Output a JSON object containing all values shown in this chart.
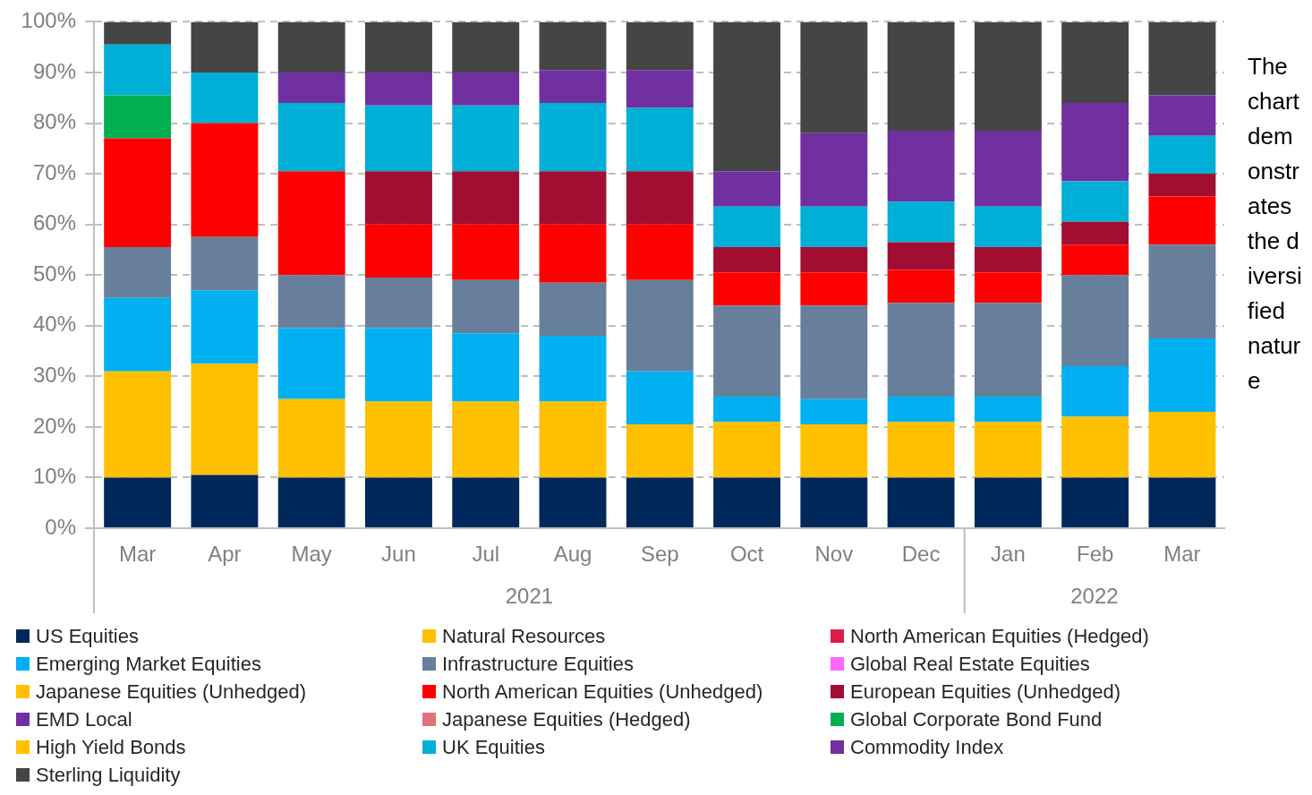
{
  "chart_data": {
    "type": "bar",
    "stacked": true,
    "x": [
      "2021-03",
      "2021-04",
      "2021-05",
      "2021-06",
      "2021-07",
      "2021-08",
      "2021-09",
      "2021-10",
      "2021-11",
      "2021-12",
      "2022-01",
      "2022-02",
      "2022-03"
    ],
    "xlim": [
      "2021-02-15",
      "2022-03-16"
    ],
    "xticks": [
      {
        "value": "2021-03",
        "label": "Mar"
      },
      {
        "value": "2021-04",
        "label": "Apr"
      },
      {
        "value": "2021-05",
        "label": "May"
      },
      {
        "value": "2021-06",
        "label": "Jun"
      },
      {
        "value": "2021-07",
        "label": "Jul"
      },
      {
        "value": "2021-08",
        "label": "Aug"
      },
      {
        "value": "2021-09",
        "label": "Sep"
      },
      {
        "value": "2021-10",
        "label": "Oct"
      },
      {
        "value": "2021-11",
        "label": "Nov"
      },
      {
        "value": "2021-12",
        "label": "Dec"
      },
      {
        "value": "2022-01",
        "label": "Jan"
      },
      {
        "value": "2022-02",
        "label": "Feb"
      },
      {
        "value": "2022-03",
        "label": "Mar"
      }
    ],
    "series": [
      {
        "name": "US Equities",
        "color": "#00285a",
        "values": [
          10,
          10.5,
          10,
          10,
          10,
          10,
          10,
          10,
          10,
          10,
          10,
          10,
          10
        ]
      },
      {
        "name": "Natural Resources",
        "color": "#ffc000",
        "values": [
          21,
          22,
          15.5,
          15,
          15,
          15,
          10.5,
          11,
          10.5,
          11,
          11,
          12,
          13
        ]
      },
      {
        "name": "North American Equities (Hedged)",
        "color": "#dc1c4a",
        "values": [
          0,
          0,
          0,
          0,
          0,
          0,
          0,
          0,
          0,
          0,
          0,
          0,
          0
        ]
      },
      {
        "name": "Emerging Market Equities",
        "color": "#00b0f0",
        "values": [
          14.5,
          14.5,
          14,
          14.5,
          13.5,
          13,
          10.5,
          5,
          5,
          5,
          5,
          10,
          14.5
        ]
      },
      {
        "name": "Infrastructure Equities",
        "color": "#687f9c",
        "values": [
          10,
          10.5,
          10.5,
          10,
          10.5,
          10.5,
          18,
          18,
          18.5,
          18.5,
          18.5,
          18,
          18.5
        ]
      },
      {
        "name": "Global Real Estate Equities",
        "color": "#ff66ff",
        "values": [
          0,
          0,
          0,
          0,
          0,
          0,
          0,
          0,
          0,
          0,
          0,
          0,
          0
        ]
      },
      {
        "name": "Japanese Equities (Unhedged)",
        "color": "#ffc000",
        "values": [
          0,
          0,
          0,
          0,
          0,
          0,
          0,
          0,
          0,
          0,
          0,
          0,
          0
        ]
      },
      {
        "name": "North American Equities (Unhedged)",
        "color": "#ff0000",
        "values": [
          21.5,
          22.5,
          20.5,
          10.5,
          11,
          11.5,
          11,
          6.5,
          6.5,
          6.5,
          6,
          6,
          9.5
        ]
      },
      {
        "name": "European Equities (Unhedged)",
        "color": "#a20e31",
        "values": [
          0,
          0,
          0,
          10.5,
          10.5,
          10.5,
          10.5,
          5,
          5,
          5.5,
          5,
          4.5,
          4.5
        ]
      },
      {
        "name": "EMD Local",
        "color": "#7030a0",
        "values": [
          0,
          0,
          0,
          0,
          0,
          0,
          0,
          0,
          0,
          0,
          0,
          0,
          0
        ]
      },
      {
        "name": "Japanese Equities (Hedged)",
        "color": "#e3707a",
        "values": [
          0,
          0,
          0,
          0,
          0,
          0,
          0,
          0,
          0,
          0,
          0,
          0,
          0
        ]
      },
      {
        "name": "Global Corporate Bond Fund",
        "color": "#00b050",
        "values": [
          8.5,
          0,
          0,
          0,
          0,
          0,
          0,
          0,
          0,
          0,
          0,
          0,
          0
        ]
      },
      {
        "name": "High Yield Bonds",
        "color": "#ffc000",
        "values": [
          0,
          0,
          0,
          0,
          0,
          0,
          0,
          0,
          0,
          0,
          0,
          0,
          0
        ]
      },
      {
        "name": "UK Equities",
        "color": "#00afd6",
        "values": [
          10,
          10,
          13.5,
          13,
          13,
          13.5,
          12.5,
          8,
          8,
          8,
          8,
          8,
          7.5
        ]
      },
      {
        "name": "Commodity Index",
        "color": "#7030a0",
        "values": [
          0,
          0,
          6,
          6.5,
          6.5,
          6.5,
          7.5,
          7,
          14.5,
          14,
          15,
          15.5,
          8
        ]
      },
      {
        "name": "Sterling Liquidity",
        "color": "#444545",
        "values": [
          4.5,
          10,
          10,
          10,
          10,
          9.5,
          9.5,
          29.5,
          22,
          21.5,
          21.5,
          16,
          14.5
        ]
      }
    ],
    "ylim": [
      0,
      100
    ],
    "yticks": [
      {
        "value": 0,
        "label": "0%"
      },
      {
        "value": 10,
        "label": "10%"
      },
      {
        "value": 20,
        "label": "20%"
      },
      {
        "value": 30,
        "label": "30%"
      },
      {
        "value": 40,
        "label": "40%"
      },
      {
        "value": 50,
        "label": "50%"
      },
      {
        "value": 60,
        "label": "60%"
      },
      {
        "value": 70,
        "label": "70%"
      },
      {
        "value": 80,
        "label": "80%"
      },
      {
        "value": 90,
        "label": "90%"
      },
      {
        "value": 100,
        "label": "100%"
      }
    ],
    "grid": "y",
    "legend": "bottom",
    "annotations": [
      "2021",
      "2022",
      "The chart demonstrates the diversified nature"
    ]
  }
}
